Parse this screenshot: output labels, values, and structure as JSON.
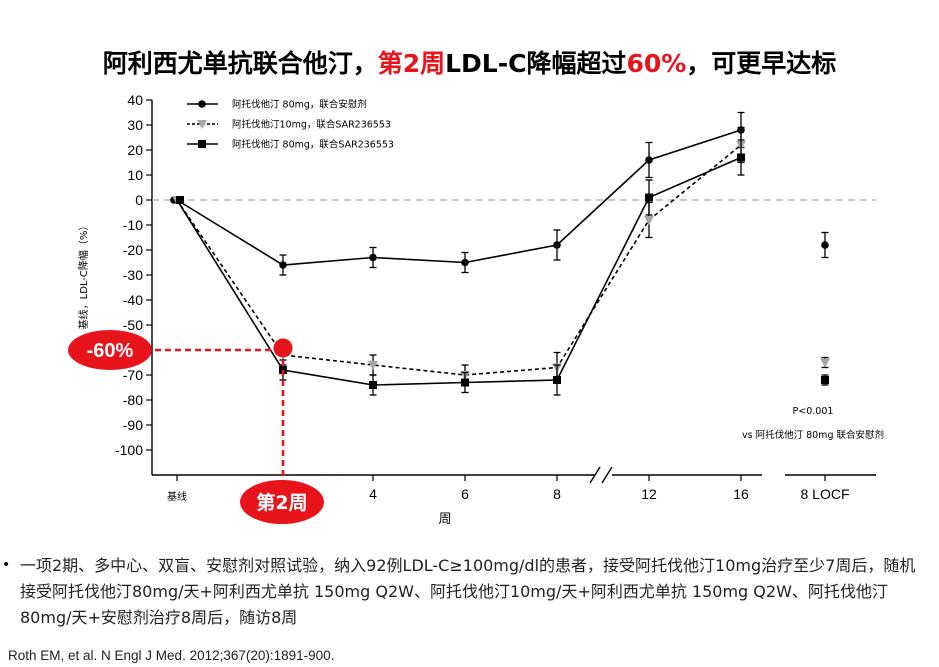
{
  "title": {
    "part1": "阿利西尤单抗联合他汀，",
    "part2": "第2周",
    "part3": "LDL-C降幅超过",
    "part4": "60%",
    "part5": "，可更早达标"
  },
  "colors": {
    "accent_red": "#e8141c",
    "series_black": "#000000",
    "series_gray": "#a6a6a6",
    "dashed_ref": "#a6a6a6"
  },
  "chart_data": {
    "type": "line",
    "ylabel": "基线，LDL-C降幅（%）",
    "xlabel": "周",
    "ylim": [
      -100,
      40
    ],
    "yticks": [
      40,
      30,
      20,
      10,
      0,
      -10,
      -20,
      -30,
      -40,
      -50,
      -60,
      -70,
      -80,
      -90,
      -100
    ],
    "xticks": [
      "基线",
      "4",
      "6",
      "8",
      "12",
      "16",
      "8 LOCF"
    ],
    "x": [
      "基线",
      "2",
      "4",
      "6",
      "8",
      "12",
      "16"
    ],
    "series": [
      {
        "name": "阿托伐他汀 80mg，联合安慰剂",
        "marker": "circle",
        "line": "solid",
        "color": "#000000",
        "values": [
          0,
          -26,
          -23,
          -25,
          -18,
          16,
          28
        ],
        "locf": -18
      },
      {
        "name": "阿托伐他汀10mg，联合SAR236553",
        "marker": "triangle-down",
        "line": "dotted",
        "color": "#a6a6a6",
        "values": [
          0,
          -62,
          -66,
          -70,
          -67,
          -8,
          22
        ],
        "locf": -65
      },
      {
        "name": "阿托伐他汀 80mg，联合SAR236553",
        "marker": "square",
        "line": "solid",
        "color": "#000000",
        "values": [
          0,
          -68,
          -74,
          -73,
          -72,
          1,
          17
        ],
        "locf": -72
      }
    ],
    "errors": [
      2,
      4,
      4,
      4,
      6,
      7,
      7
    ],
    "reference_line": 0,
    "annotations": {
      "pvalue": "P<0.001",
      "comparison": "vs 阿托伐他汀 80mg 联合安慰剂",
      "callout_value": "-60%",
      "callout_week": "第2周"
    },
    "legend_position": "top-left"
  },
  "bullet": "一项2期、多中心、双盲、安慰剂对照试验，纳入92例LDL-C≥100mg/dl的患者，接受阿托伐他汀10mg治疗至少7周后，随机接受阿托伐他汀80mg/天+阿利西尤单抗 150mg Q2W、阿托伐他汀10mg/天+阿利西尤单抗 150mg Q2W、阿托伐他汀80mg/天+安慰剂治疗8周后，随访8周",
  "bullet_marker": "•",
  "reference": "Roth EM, et al. N Engl J Med. 2012;367(20):1891-900."
}
